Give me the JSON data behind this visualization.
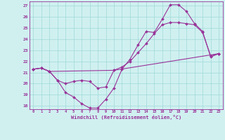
{
  "xlabel": "Windchill (Refroidissement éolien,°C)",
  "xlim": [
    -0.5,
    23.5
  ],
  "ylim": [
    17.7,
    27.4
  ],
  "yticks": [
    18,
    19,
    20,
    21,
    22,
    23,
    24,
    25,
    26,
    27
  ],
  "xticks": [
    0,
    1,
    2,
    3,
    4,
    5,
    6,
    7,
    8,
    9,
    10,
    11,
    12,
    13,
    14,
    15,
    16,
    17,
    18,
    19,
    20,
    21,
    22,
    23
  ],
  "background_color": "#d0f0f0",
  "grid_color": "#a0d8d8",
  "line_color": "#993399",
  "series": [
    {
      "x": [
        0,
        1,
        2,
        3,
        4,
        5,
        6,
        7,
        8,
        9,
        10,
        11,
        12,
        13,
        14,
        15,
        16,
        17,
        18,
        19,
        20,
        21,
        22,
        23
      ],
      "y": [
        21.3,
        21.4,
        21.1,
        20.3,
        19.2,
        18.8,
        18.2,
        17.8,
        17.8,
        18.6,
        19.6,
        21.3,
        22.2,
        23.5,
        24.7,
        24.6,
        25.8,
        27.1,
        27.1,
        26.5,
        25.4,
        24.7,
        22.4,
        22.7
      ]
    },
    {
      "x": [
        0,
        1,
        2,
        3,
        4,
        5,
        6,
        7,
        8,
        9,
        10,
        11,
        12,
        13,
        14,
        15,
        16,
        17,
        18,
        19,
        20,
        21,
        22,
        23
      ],
      "y": [
        21.3,
        21.4,
        21.1,
        20.3,
        20.0,
        20.2,
        20.3,
        20.2,
        19.6,
        19.7,
        21.2,
        21.5,
        22.0,
        22.8,
        23.6,
        24.5,
        25.3,
        25.5,
        25.5,
        25.4,
        25.3,
        24.6,
        22.5,
        22.7
      ]
    },
    {
      "x": [
        0,
        1,
        2,
        10,
        23
      ],
      "y": [
        21.3,
        21.4,
        21.1,
        21.2,
        22.7
      ]
    }
  ]
}
